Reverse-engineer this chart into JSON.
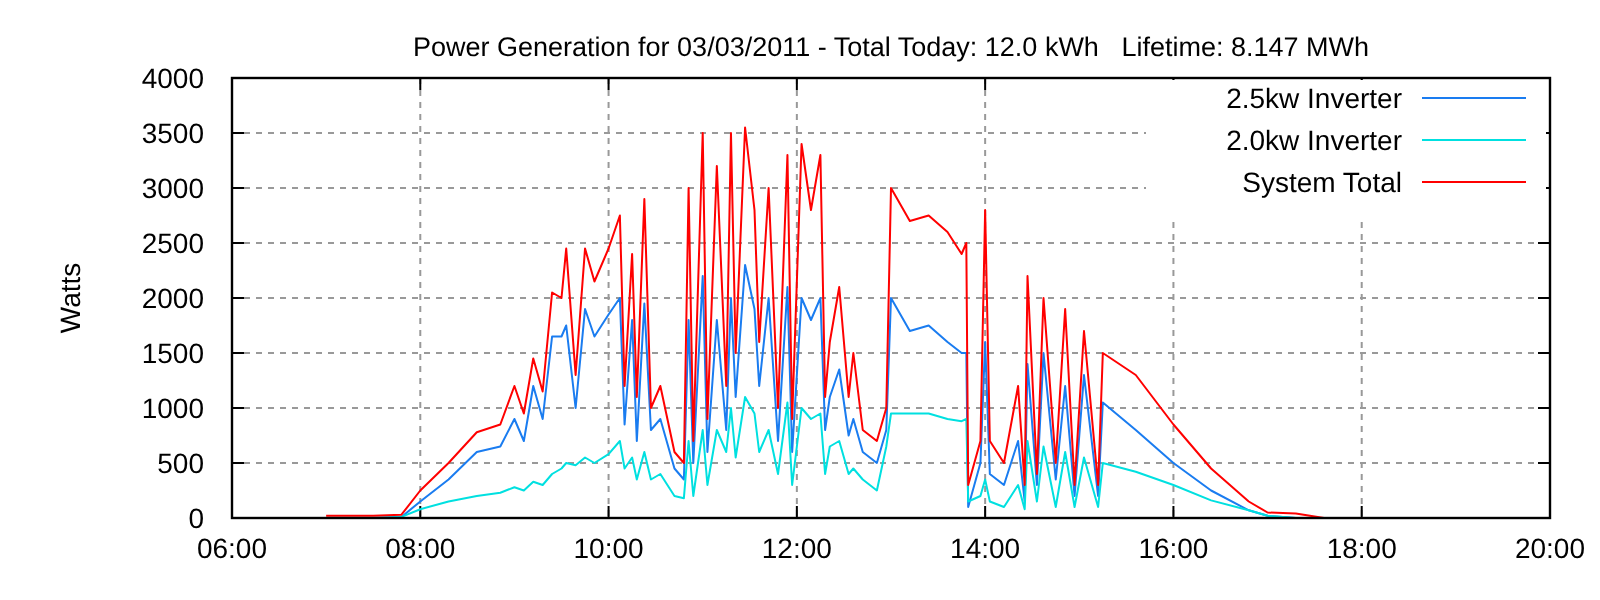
{
  "chart_data": {
    "type": "line",
    "title": "Power Generation for 03/03/2011 - Total Today: 12.0 kWh   Lifetime: 8.147 MWh",
    "ylabel": "Watts",
    "x": [
      7.0,
      7.5,
      7.8,
      8.0,
      8.3,
      8.6,
      8.85,
      9.0,
      9.1,
      9.2,
      9.3,
      9.4,
      9.5,
      9.55,
      9.65,
      9.75,
      9.85,
      10.0,
      10.12,
      10.17,
      10.25,
      10.3,
      10.38,
      10.45,
      10.55,
      10.7,
      10.8,
      10.85,
      10.9,
      11.0,
      11.05,
      11.15,
      11.25,
      11.3,
      11.35,
      11.45,
      11.55,
      11.6,
      11.7,
      11.8,
      11.9,
      11.95,
      12.05,
      12.15,
      12.25,
      12.3,
      12.35,
      12.45,
      12.55,
      12.6,
      12.7,
      12.85,
      12.95,
      13.0,
      13.2,
      13.4,
      13.6,
      13.75,
      13.8,
      13.82,
      13.95,
      14.0,
      14.05,
      14.2,
      14.35,
      14.42,
      14.45,
      14.55,
      14.62,
      14.75,
      14.85,
      14.95,
      15.05,
      15.2,
      15.25,
      15.6,
      16.0,
      16.4,
      16.8,
      17.0,
      17.3,
      17.6
    ],
    "series": [
      {
        "name": "2.5kw Inverter",
        "color": "#1a7cf0",
        "values": [
          0,
          0,
          10,
          150,
          350,
          600,
          650,
          900,
          700,
          1200,
          900,
          1650,
          1650,
          1750,
          1000,
          1900,
          1650,
          1850,
          2000,
          850,
          1800,
          700,
          1950,
          800,
          900,
          450,
          350,
          1800,
          500,
          2200,
          600,
          1800,
          800,
          2000,
          1100,
          2300,
          1900,
          1200,
          2000,
          700,
          2100,
          600,
          2000,
          1800,
          2000,
          800,
          1100,
          1350,
          750,
          900,
          600,
          500,
          800,
          2000,
          1700,
          1750,
          1600,
          1500,
          1500,
          100,
          500,
          1600,
          400,
          300,
          700,
          150,
          1400,
          300,
          1500,
          350,
          1200,
          200,
          1300,
          200,
          1050,
          800,
          500,
          250,
          70,
          20,
          0,
          0
        ]
      },
      {
        "name": "2.0kw Inverter",
        "color": "#00e0e0",
        "values": [
          0,
          0,
          10,
          80,
          150,
          200,
          230,
          280,
          250,
          330,
          300,
          400,
          450,
          500,
          480,
          550,
          500,
          580,
          700,
          450,
          550,
          350,
          600,
          350,
          400,
          200,
          180,
          700,
          200,
          800,
          300,
          800,
          600,
          1000,
          550,
          1100,
          950,
          600,
          800,
          400,
          1050,
          300,
          1000,
          900,
          950,
          400,
          650,
          700,
          400,
          450,
          350,
          250,
          650,
          950,
          950,
          950,
          900,
          880,
          900,
          150,
          200,
          350,
          150,
          100,
          300,
          80,
          700,
          150,
          650,
          100,
          600,
          100,
          550,
          100,
          500,
          420,
          300,
          160,
          70,
          20,
          0,
          0
        ]
      },
      {
        "name": "System Total",
        "color": "#ff0000",
        "values": [
          20,
          20,
          30,
          250,
          500,
          780,
          850,
          1200,
          950,
          1450,
          1150,
          2050,
          2000,
          2450,
          1300,
          2450,
          2150,
          2450,
          2750,
          1200,
          2400,
          1100,
          2900,
          1000,
          1200,
          600,
          500,
          3000,
          700,
          3500,
          900,
          3200,
          1200,
          3500,
          1500,
          3550,
          2800,
          1600,
          3000,
          1000,
          3300,
          900,
          3400,
          2800,
          3300,
          1100,
          1600,
          2100,
          1100,
          1500,
          800,
          700,
          1000,
          3000,
          2700,
          2750,
          2600,
          2400,
          2500,
          300,
          700,
          2800,
          700,
          500,
          1200,
          300,
          2200,
          400,
          2000,
          500,
          1900,
          300,
          1700,
          300,
          1500,
          1300,
          850,
          450,
          150,
          50,
          40,
          0
        ]
      }
    ],
    "xlim": [
      6,
      20
    ],
    "xticks": [
      {
        "value": 6,
        "label": "06:00"
      },
      {
        "value": 8,
        "label": "08:00"
      },
      {
        "value": 10,
        "label": "10:00"
      },
      {
        "value": 12,
        "label": "12:00"
      },
      {
        "value": 14,
        "label": "14:00"
      },
      {
        "value": 16,
        "label": "16:00"
      },
      {
        "value": 18,
        "label": "18:00"
      },
      {
        "value": 20,
        "label": "20:00"
      }
    ],
    "ylim": [
      0,
      4000
    ],
    "yticks": [
      0,
      500,
      1000,
      1500,
      2000,
      2500,
      3000,
      3500,
      4000
    ],
    "grid": true,
    "legend": "top right",
    "marker": "none",
    "line_style": "solid"
  }
}
